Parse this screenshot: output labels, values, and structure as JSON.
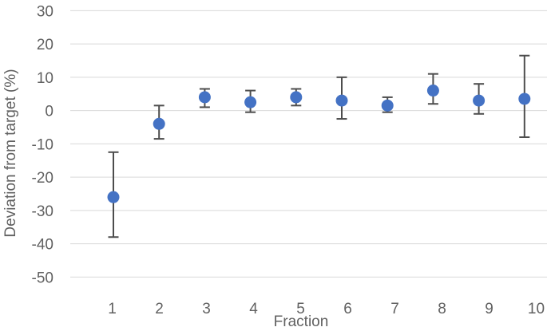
{
  "chart_data": {
    "type": "scatter",
    "title": "",
    "xlabel": "Fraction",
    "ylabel": "Deviation from target (%)",
    "categories": [
      "1",
      "2",
      "3",
      "4",
      "5",
      "6",
      "7",
      "8",
      "9",
      "10"
    ],
    "y_ticks": [
      30,
      20,
      10,
      0,
      -10,
      -20,
      -30,
      -40,
      -50
    ],
    "ylim": [
      -58,
      31.5
    ],
    "xlim": [
      0,
      11
    ],
    "grid": true,
    "legend": false,
    "series": [
      {
        "name": "Deviation from target",
        "x": [
          1,
          2,
          3,
          4,
          5,
          6,
          7,
          8,
          9,
          10
        ],
        "values": [
          -26,
          -4,
          4,
          2.5,
          4,
          3,
          1.5,
          6,
          3,
          3.5
        ],
        "error_bar_low": [
          -38,
          -8.5,
          1,
          -0.5,
          1.5,
          -2.5,
          -0.5,
          2,
          -1,
          -8
        ],
        "error_bar_high": [
          -12.5,
          1.5,
          6.5,
          6,
          6.5,
          10,
          4,
          11,
          8,
          16.5
        ],
        "marker": "circle"
      }
    ],
    "colors": {
      "marker": "#4472C4",
      "error_bar": "#4d4d4d",
      "gridline": "#D9D9D9",
      "axis_text": "#616161",
      "background": "#FFFFFF"
    }
  }
}
